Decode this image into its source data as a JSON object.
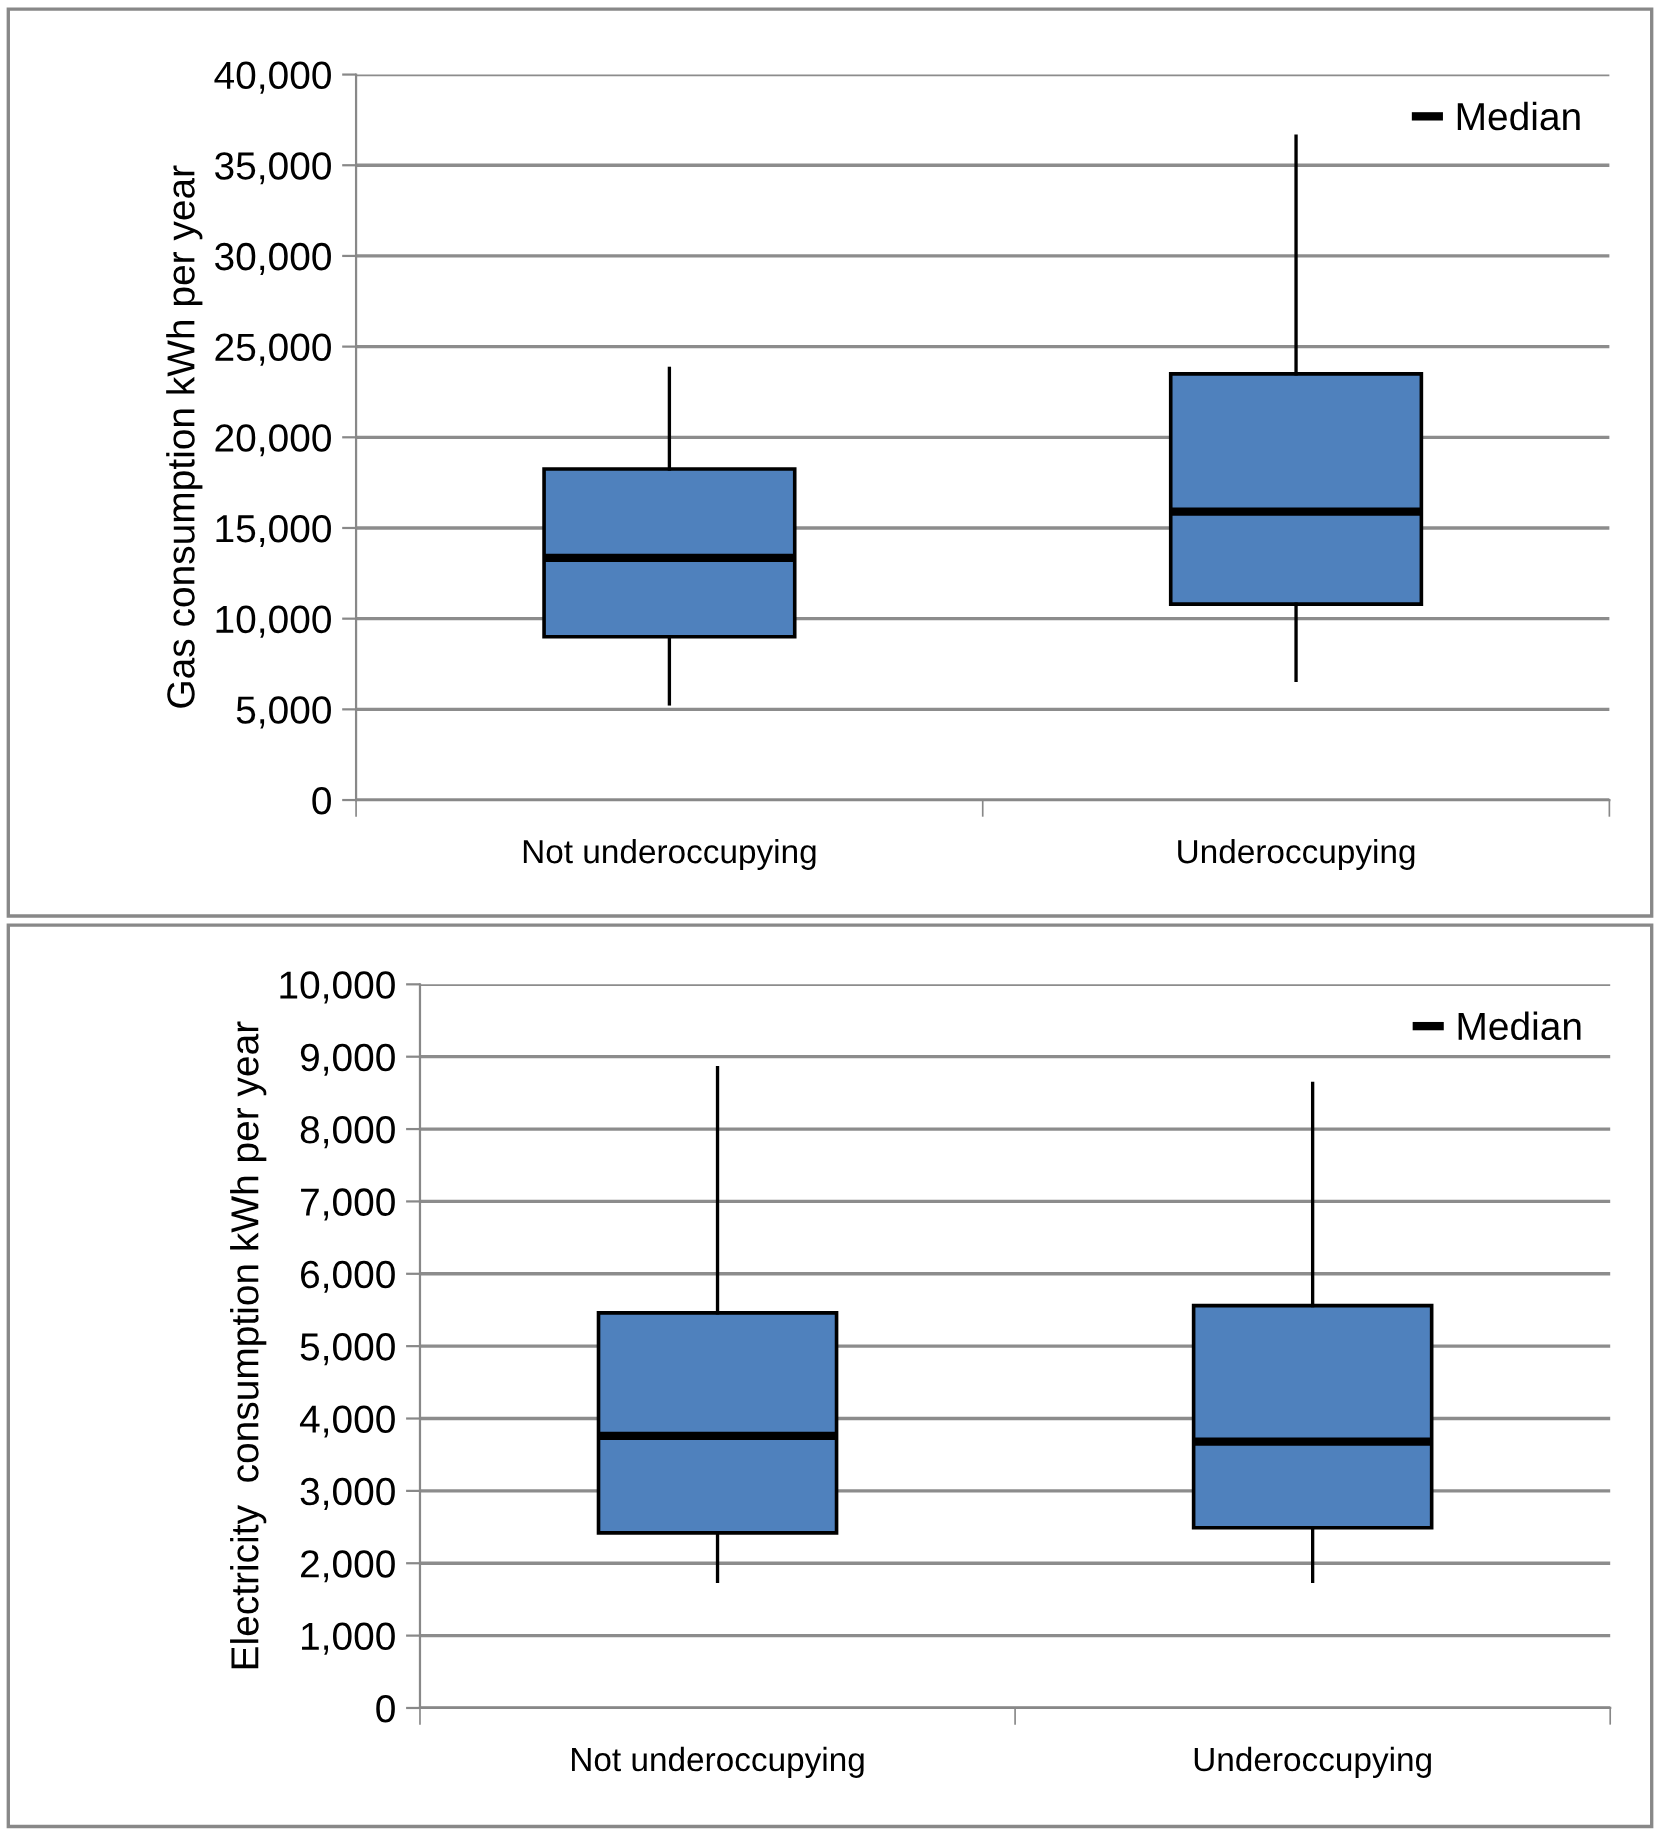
{
  "chart_data": [
    {
      "type": "box",
      "ylabel": "Gas consumption kWh per year",
      "categories": [
        "Not underoccupying",
        "Underoccupying"
      ],
      "ylim": [
        0,
        40000
      ],
      "yticks": [
        {
          "value": 0,
          "label": "0"
        },
        {
          "value": 5000,
          "label": "5,000"
        },
        {
          "value": 10000,
          "label": "10,000"
        },
        {
          "value": 15000,
          "label": "15,000"
        },
        {
          "value": 20000,
          "label": "20,000"
        },
        {
          "value": 25000,
          "label": "25,000"
        },
        {
          "value": 30000,
          "label": "30,000"
        },
        {
          "value": 35000,
          "label": "35,000"
        },
        {
          "value": 40000,
          "label": "40,000"
        }
      ],
      "grid": "y",
      "legend": "top right",
      "series": [
        {
          "name": "Median",
          "color": "#4f81bd",
          "boxes": [
            {
              "low": 5300,
              "q1": 9000,
              "median": 13350,
              "q3": 18250,
              "high": 23800
            },
            {
              "low": 6600,
              "q1": 10800,
              "median": 15900,
              "q3": 23500,
              "high": 36600
            }
          ]
        }
      ]
    },
    {
      "type": "box",
      "ylabel": "Electricity  consumption kWh per year",
      "categories": [
        "Not underoccupying",
        "Underoccupying"
      ],
      "ylim": [
        0,
        10000
      ],
      "yticks": [
        {
          "value": 0,
          "label": "0"
        },
        {
          "value": 1000,
          "label": "1,000"
        },
        {
          "value": 2000,
          "label": "2,000"
        },
        {
          "value": 3000,
          "label": "3,000"
        },
        {
          "value": 4000,
          "label": "4,000"
        },
        {
          "value": 5000,
          "label": "5,000"
        },
        {
          "value": 6000,
          "label": "6,000"
        },
        {
          "value": 7000,
          "label": "7,000"
        },
        {
          "value": 8000,
          "label": "8,000"
        },
        {
          "value": 9000,
          "label": "9,000"
        },
        {
          "value": 10000,
          "label": "10,000"
        }
      ],
      "grid": "y",
      "legend": "top right",
      "series": [
        {
          "name": "Median",
          "color": "#4f81bd",
          "boxes": [
            {
              "low": 1750,
              "q1": 2420,
              "median": 3760,
              "q3": 5460,
              "high": 8850
            },
            {
              "low": 1750,
              "q1": 2490,
              "median": 3680,
              "q3": 5560,
              "high": 8630
            }
          ]
        }
      ]
    }
  ]
}
